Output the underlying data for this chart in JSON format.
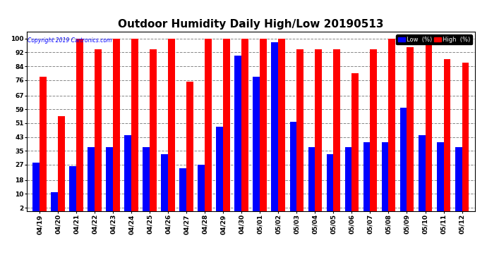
{
  "title": "Outdoor Humidity Daily High/Low 20190513",
  "copyright": "Copyright 2019 Cartronics.com",
  "dates": [
    "04/19",
    "04/20",
    "04/21",
    "04/22",
    "04/23",
    "04/24",
    "04/25",
    "04/26",
    "04/27",
    "04/28",
    "04/29",
    "04/30",
    "05/01",
    "05/02",
    "05/03",
    "05/04",
    "05/05",
    "05/06",
    "05/07",
    "05/08",
    "05/09",
    "05/10",
    "05/11",
    "05/12"
  ],
  "high": [
    78,
    55,
    100,
    94,
    100,
    100,
    94,
    100,
    75,
    100,
    100,
    100,
    100,
    100,
    94,
    94,
    94,
    80,
    94,
    100,
    95,
    100,
    88,
    86
  ],
  "low": [
    28,
    11,
    26,
    37,
    37,
    44,
    37,
    33,
    25,
    27,
    49,
    90,
    78,
    98,
    52,
    37,
    33,
    37,
    40,
    40,
    60,
    44,
    40,
    37
  ],
  "high_color": "#ff0000",
  "low_color": "#0000ff",
  "bg_color": "#ffffff",
  "plot_bg_color": "#ffffff",
  "grid_color": "#888888",
  "ylim": [
    0,
    104
  ],
  "yticks": [
    2,
    10,
    18,
    27,
    35,
    43,
    51,
    59,
    67,
    76,
    84,
    92,
    100
  ],
  "bar_width": 0.38,
  "title_fontsize": 11,
  "tick_fontsize": 6.5,
  "legend_low_label": "Low  (%)",
  "legend_high_label": "High  (%)"
}
